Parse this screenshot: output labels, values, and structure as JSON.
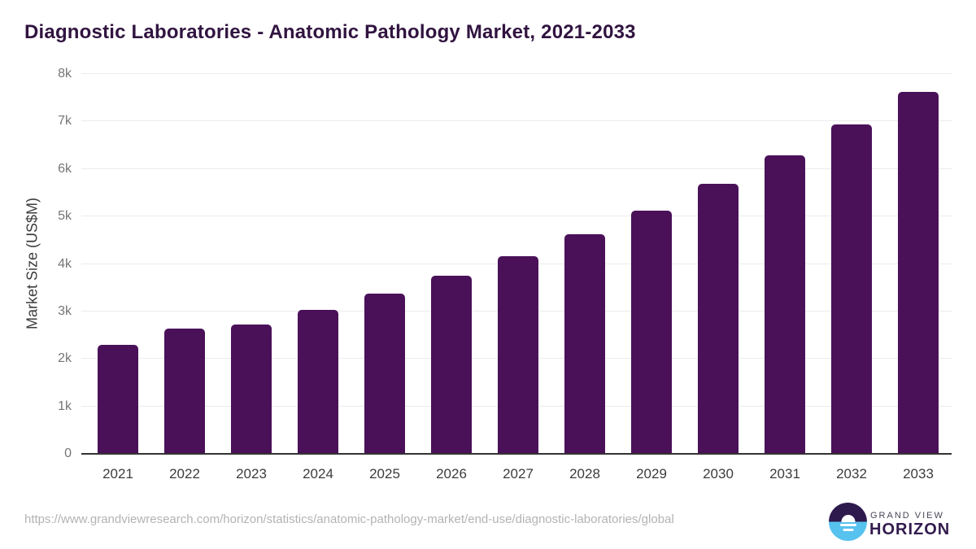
{
  "header": {
    "title": "Diagnostic Laboratories - Anatomic Pathology Market, 2021-2033"
  },
  "chart_data": {
    "type": "bar",
    "title": "Diagnostic Laboratories - Anatomic Pathology Market, 2021-2033",
    "categories": [
      "2021",
      "2022",
      "2023",
      "2024",
      "2025",
      "2026",
      "2027",
      "2028",
      "2029",
      "2030",
      "2031",
      "2032",
      "2033"
    ],
    "values": [
      2300,
      2630,
      2730,
      3030,
      3370,
      3750,
      4160,
      4620,
      5130,
      5680,
      6290,
      6930,
      7630
    ],
    "xlabel": "",
    "ylabel": "Market Size (US$M)",
    "ylim": [
      0,
      8000
    ],
    "ytick_values": [
      0,
      1000,
      2000,
      3000,
      4000,
      5000,
      6000,
      7000,
      8000
    ],
    "ytick_labels": [
      "0",
      "1k",
      "2k",
      "3k",
      "4k",
      "5k",
      "6k",
      "7k",
      "8k"
    ],
    "grid": "horizontal",
    "legend": "none",
    "bar_color": "#4a1159"
  },
  "footer": {
    "source_url": "https://www.grandviewresearch.com/horizon/statistics/anatomic-pathology-market/end-use/diagnostic-laboratories/global",
    "logo": {
      "line1": "GRAND VIEW",
      "line2": "HORIZON",
      "icon": "sunrise-horizon-icon"
    }
  },
  "colors": {
    "title": "#311440",
    "bar": "#4a1159",
    "grid": "#ebebeb",
    "axis": "#333333",
    "ytick": "#757575",
    "xtick": "#3c3c3c",
    "url": "#b3b3b3",
    "logo_purple": "#2e1a4d",
    "logo_blue": "#57c2ee",
    "logo_text": "#321b4e",
    "logo_subtext": "#4b4556"
  }
}
